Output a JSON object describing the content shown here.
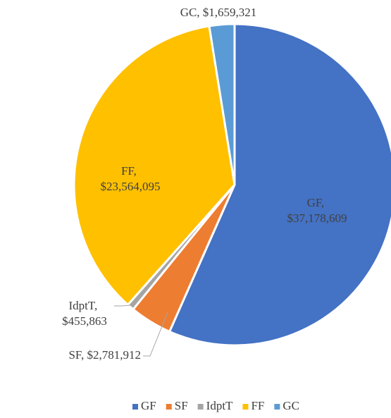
{
  "chart_data": {
    "type": "pie",
    "categories": [
      "GF",
      "SF",
      "IdptT",
      "FF",
      "GC"
    ],
    "values": [
      37178609,
      2781912,
      455863,
      23564095,
      1659321
    ],
    "value_labels": [
      "GF, $37,178,609",
      "SF, $2,781,912",
      "IdptT, $455,863",
      "FF, $23,564,095",
      "GC, $1,659,321"
    ],
    "colors": [
      "#4472c4",
      "#ed7d31",
      "#a5a5a5",
      "#ffc000",
      "#5b9bd5"
    ],
    "legend": "bottom"
  }
}
